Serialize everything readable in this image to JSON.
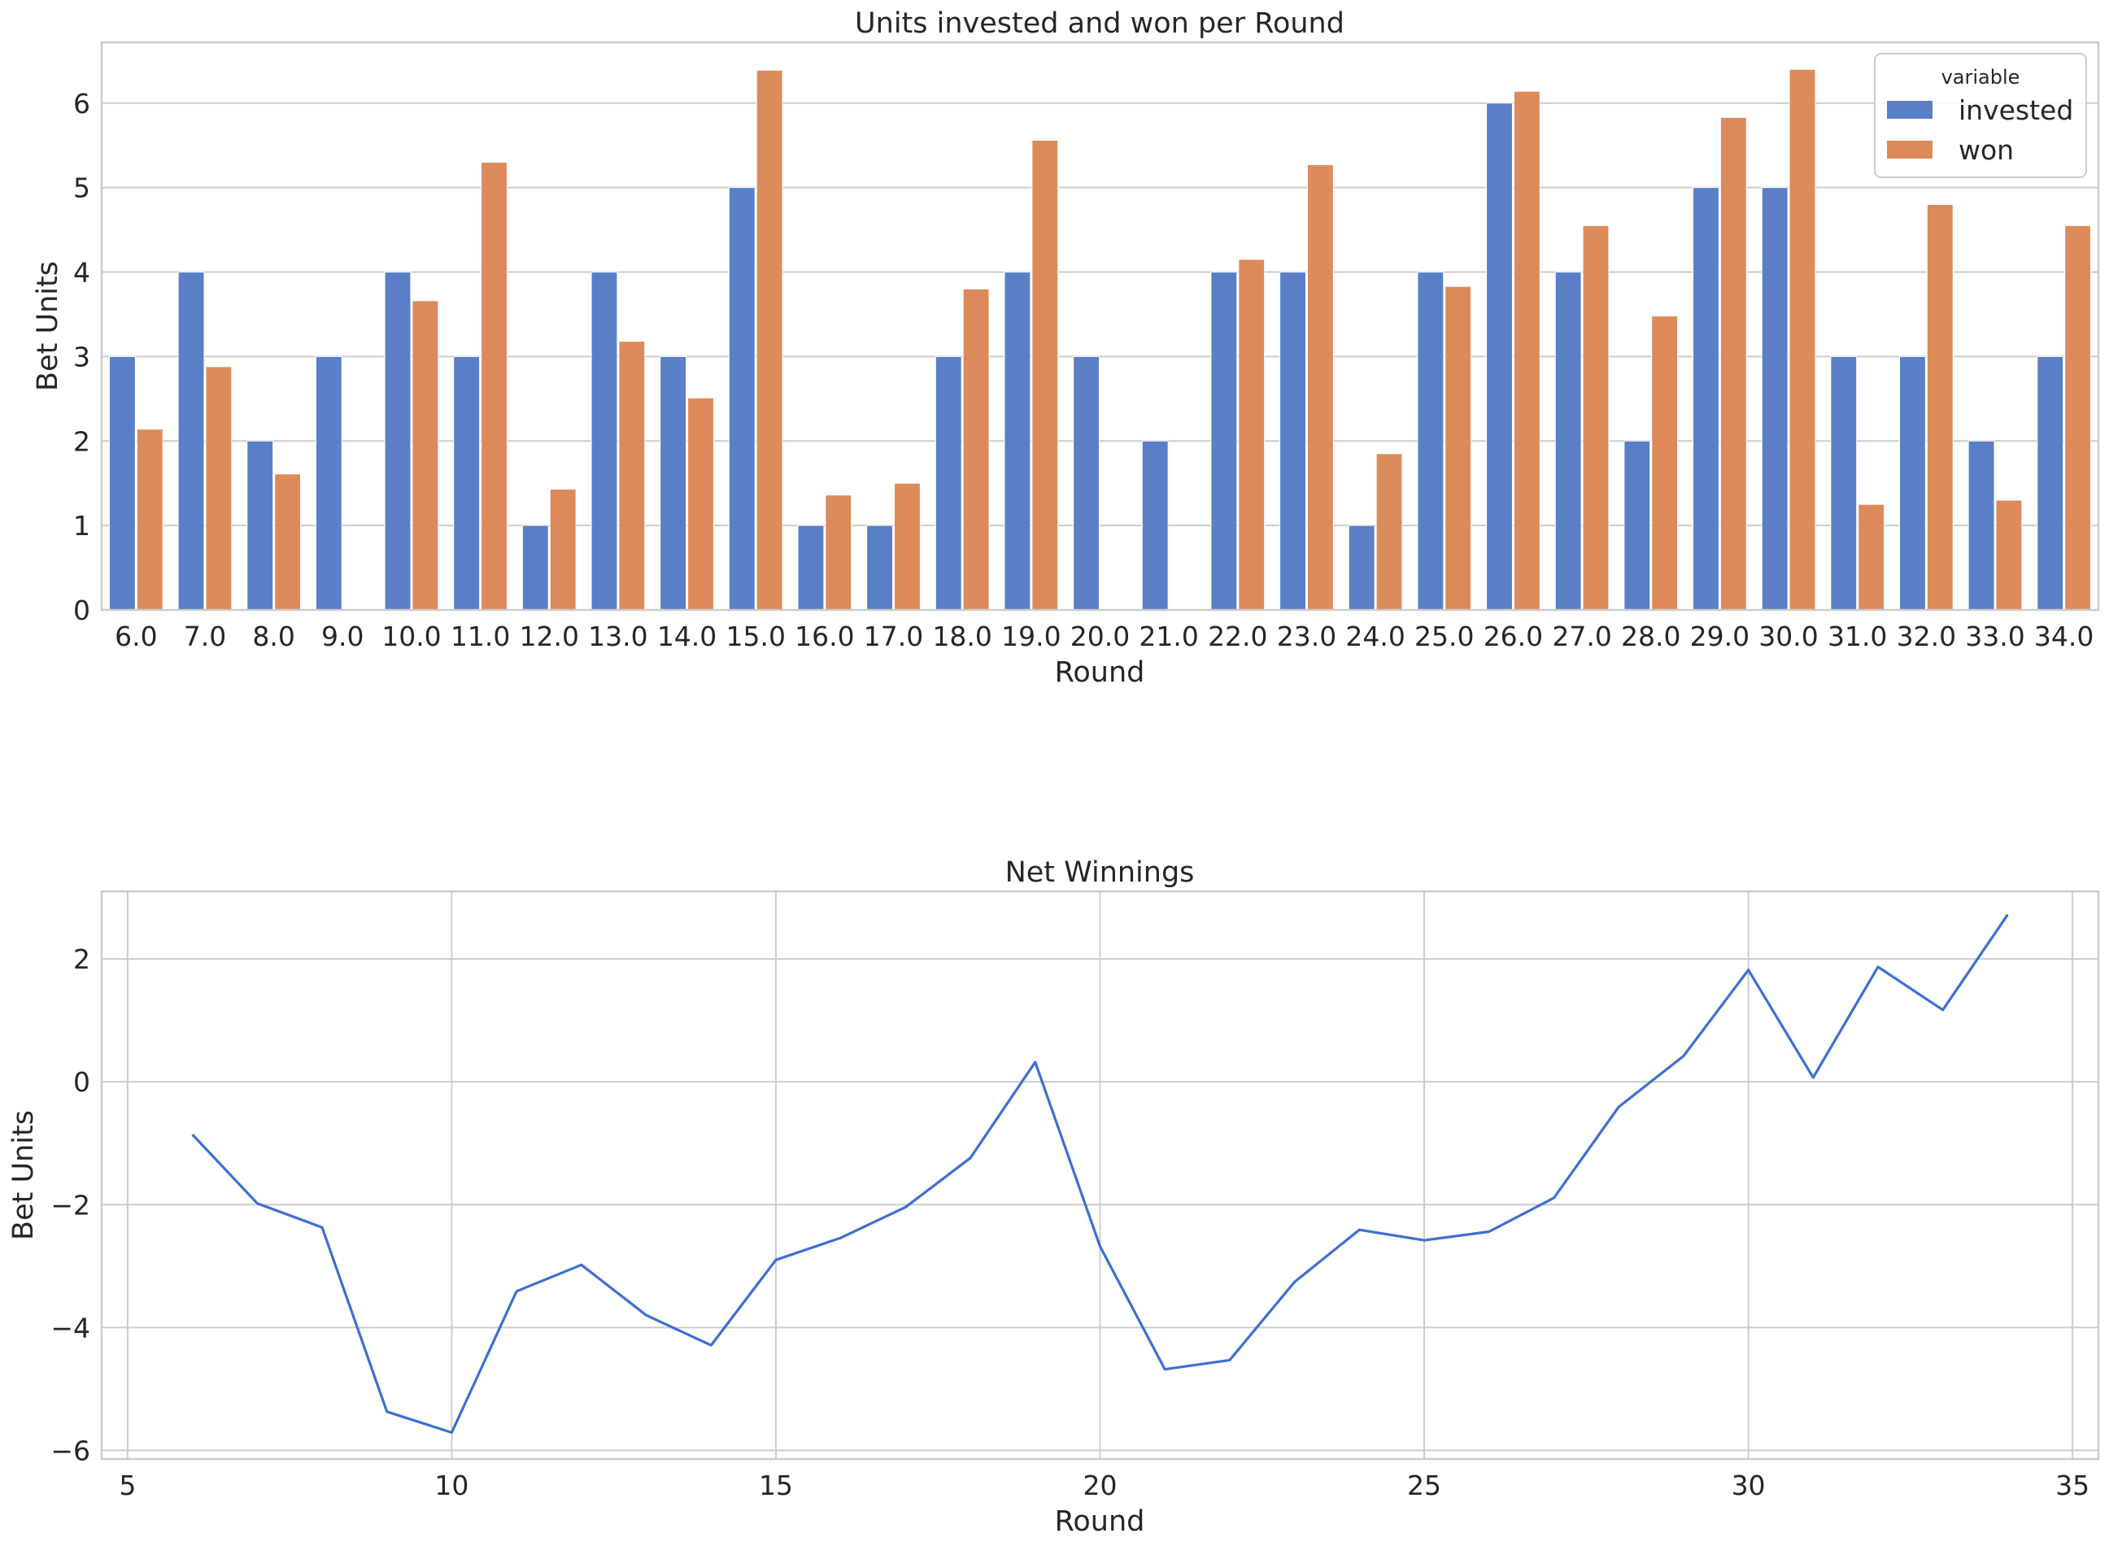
{
  "chart_data": [
    {
      "type": "bar",
      "title": "Units invested and won per Round",
      "xlabel": "Round",
      "ylabel": "Bet Units",
      "ylim": [
        0,
        6.72
      ],
      "yticks": [
        0,
        1,
        2,
        3,
        4,
        5,
        6
      ],
      "grid": "horizontal",
      "legend": {
        "title": "variable",
        "placement": "top-right"
      },
      "categories": [
        "6.0",
        "7.0",
        "8.0",
        "9.0",
        "10.0",
        "11.0",
        "12.0",
        "13.0",
        "14.0",
        "15.0",
        "16.0",
        "17.0",
        "18.0",
        "19.0",
        "20.0",
        "21.0",
        "22.0",
        "23.0",
        "24.0",
        "25.0",
        "26.0",
        "27.0",
        "28.0",
        "29.0",
        "30.0",
        "31.0",
        "32.0",
        "33.0",
        "34.0"
      ],
      "series": [
        {
          "name": "invested",
          "color": "#5a7fc6",
          "values": [
            3,
            4,
            2,
            3,
            4,
            3,
            1,
            4,
            3,
            5,
            1,
            1,
            3,
            4,
            3,
            2,
            4,
            4,
            1,
            4,
            6,
            4,
            2,
            5,
            5,
            3,
            3,
            2,
            3
          ]
        },
        {
          "name": "won",
          "color": "#dd8a5a",
          "values": [
            2.14,
            2.88,
            1.61,
            0,
            3.66,
            5.3,
            1.43,
            3.18,
            2.51,
            6.39,
            1.36,
            1.5,
            3.8,
            5.56,
            0,
            0,
            4.15,
            5.27,
            1.85,
            3.83,
            6.14,
            4.55,
            3.48,
            5.83,
            6.4,
            1.25,
            4.8,
            1.3,
            4.55
          ]
        }
      ]
    },
    {
      "type": "line",
      "title": "Net Winnings",
      "xlabel": "Round",
      "ylabel": "Bet Units",
      "xlim": [
        4.6,
        35.4
      ],
      "ylim": [
        -6.14,
        3.1
      ],
      "xticks": [
        5,
        10,
        15,
        20,
        25,
        30,
        35
      ],
      "yticks": [
        -6,
        -4,
        -2,
        0,
        2
      ],
      "grid": "both",
      "series": [
        {
          "color": "#3d6fd3",
          "x": [
            6,
            7,
            8,
            9,
            10,
            11,
            12,
            13,
            14,
            15,
            16,
            17,
            18,
            19,
            20,
            21,
            22,
            23,
            24,
            25,
            26,
            27,
            28,
            29,
            30,
            31,
            32,
            33,
            34
          ],
          "y": [
            -0.86,
            -1.98,
            -2.37,
            -5.37,
            -5.71,
            -3.41,
            -2.98,
            -3.8,
            -4.29,
            -2.9,
            -2.54,
            -2.04,
            -1.24,
            0.32,
            -2.68,
            -4.68,
            -4.53,
            -3.26,
            -2.41,
            -2.58,
            -2.44,
            -1.89,
            -0.41,
            0.42,
            1.82,
            0.07,
            1.87,
            1.17,
            2.72
          ]
        }
      ]
    }
  ]
}
